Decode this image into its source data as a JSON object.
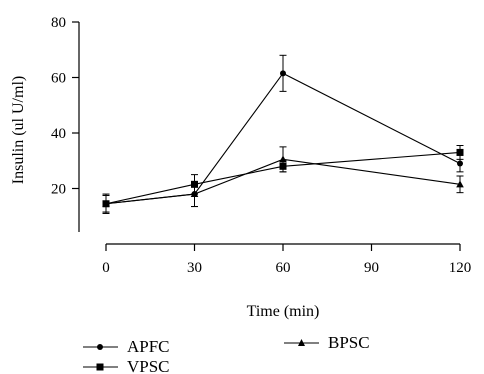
{
  "chart_data": {
    "type": "line",
    "title": "",
    "xlabel": "Time (min)",
    "ylabel": "Insulin (ul U/ml)",
    "x": [
      0,
      30,
      60,
      90,
      120
    ],
    "xticks": [
      "0",
      "30",
      "60",
      "90",
      "120"
    ],
    "yticks": [
      "20",
      "40",
      "60",
      "80"
    ],
    "ylim": [
      0,
      80
    ],
    "xlim": [
      0,
      120
    ],
    "grid": false,
    "legend_position": "bottom",
    "series": [
      {
        "name": "APFC",
        "marker": "circle",
        "x": [
          0,
          30,
          60,
          120
        ],
        "values": [
          14.5,
          18,
          61.5,
          29
        ],
        "errors": [
          3,
          4.5,
          6.5,
          3
        ]
      },
      {
        "name": "BPSC",
        "marker": "triangle",
        "x": [
          0,
          30,
          60,
          120
        ],
        "values": [
          14.5,
          18,
          30.5,
          21.5
        ],
        "errors": [
          3.5,
          4.5,
          4.5,
          3
        ]
      },
      {
        "name": "VPSC",
        "marker": "square",
        "x": [
          0,
          30,
          60,
          120
        ],
        "values": [
          14.5,
          21.5,
          28,
          33
        ],
        "errors": [
          3,
          3.5,
          2,
          2.5
        ]
      }
    ]
  }
}
